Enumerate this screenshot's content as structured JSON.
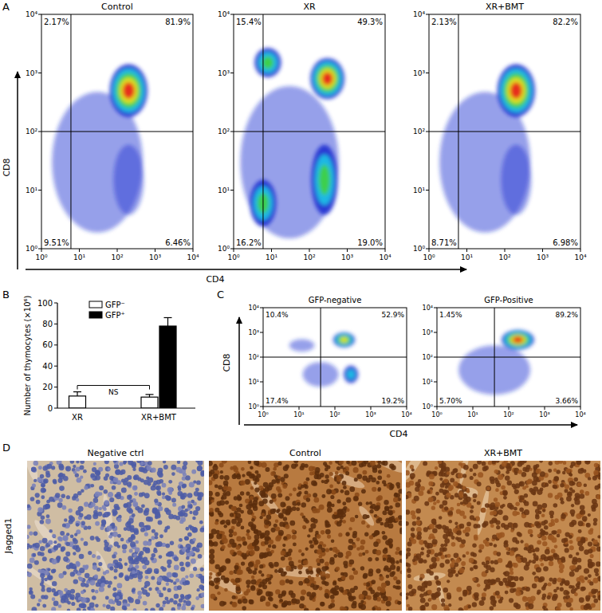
{
  "panel_labels": [
    "A",
    "B",
    "C",
    "D"
  ],
  "chart_data": [
    {
      "type": "flow",
      "xlabel": "CD4",
      "ylabel": "CD8",
      "log": true,
      "xlim": [
        1,
        10000
      ],
      "ylim": [
        1,
        10000
      ],
      "xticks": [
        {
          "value": 1,
          "label": "10⁰"
        },
        {
          "value": 10,
          "label": "10¹"
        },
        {
          "value": 100,
          "label": "10²"
        },
        {
          "value": 1000,
          "label": "10³"
        },
        {
          "value": 10000,
          "label": "10⁴"
        }
      ],
      "yticks": [
        {
          "value": 1,
          "label": "10⁰"
        },
        {
          "value": 10,
          "label": "10¹"
        },
        {
          "value": 100,
          "label": "10²"
        },
        {
          "value": 1000,
          "label": "10³"
        },
        {
          "value": 10000,
          "label": "10⁴"
        }
      ],
      "plots": [
        {
          "title": "Control",
          "gate": {
            "x": 6,
            "y": 100
          },
          "values": [
            2.17,
            81.9,
            9.51,
            6.46
          ],
          "value_labels": [
            "2.17%",
            "81.9%",
            "9.51%",
            "6.46%"
          ],
          "populations": [
            {
              "x": 30,
              "y": 30,
              "sx": 1.2,
              "sy": 1.2,
              "level": 1
            },
            {
              "x": 200,
              "y": 15,
              "sx": 0.4,
              "sy": 0.6,
              "level": 1
            },
            {
              "x": 200,
              "y": 500,
              "sx": 0.5,
              "sy": 0.45,
              "level": 5
            }
          ]
        },
        {
          "title": "XR",
          "gate": {
            "x": 6,
            "y": 100
          },
          "values": [
            15.4,
            49.3,
            16.2,
            19.0
          ],
          "value_labels": [
            "15.4%",
            "49.3%",
            "16.2%",
            "19.0%"
          ],
          "populations": [
            {
              "x": 30,
              "y": 30,
              "sx": 1.3,
              "sy": 1.3,
              "level": 1
            },
            {
              "x": 8,
              "y": 1500,
              "sx": 0.35,
              "sy": 0.25,
              "level": 3
            },
            {
              "x": 6,
              "y": 6,
              "sx": 0.35,
              "sy": 0.4,
              "level": 3
            },
            {
              "x": 250,
              "y": 15,
              "sx": 0.35,
              "sy": 0.6,
              "level": 3
            },
            {
              "x": 300,
              "y": 800,
              "sx": 0.45,
              "sy": 0.35,
              "level": 5
            }
          ]
        },
        {
          "title": "XR+BMT",
          "gate": {
            "x": 6,
            "y": 100
          },
          "values": [
            2.13,
            82.2,
            8.71,
            6.98
          ],
          "value_labels": [
            "2.13%",
            "82.2%",
            "8.71%",
            "6.98%"
          ],
          "populations": [
            {
              "x": 30,
              "y": 30,
              "sx": 1.2,
              "sy": 1.2,
              "level": 1
            },
            {
              "x": 200,
              "y": 15,
              "sx": 0.4,
              "sy": 0.6,
              "level": 1
            },
            {
              "x": 200,
              "y": 500,
              "sx": 0.5,
              "sy": 0.45,
              "level": 5
            }
          ]
        }
      ]
    },
    {
      "type": "bar",
      "ylabel": "Number of thymocytes (×10⁶)",
      "categories": [
        "XR",
        "XR+BMT"
      ],
      "series": [
        {
          "name": "GFP⁻",
          "color": "#ffffff",
          "values": [
            11.5,
            10.5
          ],
          "errors": [
            4,
            2.5
          ]
        },
        {
          "name": "GFP⁺",
          "color": "#000000",
          "values": [
            null,
            78
          ],
          "errors": [
            null,
            8
          ]
        }
      ],
      "ylim": [
        0,
        100
      ],
      "yticks": [
        0,
        20,
        40,
        60,
        80,
        100
      ],
      "annotations": [
        "NS"
      ],
      "legend": "top-left"
    },
    {
      "type": "flow",
      "xlabel": "CD4",
      "ylabel": "CD8",
      "log": true,
      "xlim": [
        1,
        10000
      ],
      "ylim": [
        1,
        10000
      ],
      "xticks": [
        {
          "value": 1,
          "label": "10⁰"
        },
        {
          "value": 10,
          "label": "10¹"
        },
        {
          "value": 100,
          "label": "10²"
        },
        {
          "value": 1000,
          "label": "10³"
        },
        {
          "value": 10000,
          "label": "10⁴"
        }
      ],
      "yticks": [
        {
          "value": 1,
          "label": "10⁰"
        },
        {
          "value": 10,
          "label": "10¹"
        },
        {
          "value": 100,
          "label": "10²"
        },
        {
          "value": 1000,
          "label": "10³"
        },
        {
          "value": 10000,
          "label": "10⁴"
        }
      ],
      "plots": [
        {
          "title": "GFP-negative",
          "gate": {
            "x": 40,
            "y": 100
          },
          "values": [
            10.4,
            52.9,
            17.4,
            19.2
          ],
          "value_labels": [
            "10.4%",
            "52.9%",
            "17.4%",
            "19.2%"
          ],
          "populations": [
            {
              "x": 40,
              "y": 20,
              "sx": 0.5,
              "sy": 0.5,
              "level": 1
            },
            {
              "x": 12,
              "y": 300,
              "sx": 0.35,
              "sy": 0.25,
              "level": 1
            },
            {
              "x": 280,
              "y": 20,
              "sx": 0.2,
              "sy": 0.35,
              "level": 2
            },
            {
              "x": 180,
              "y": 500,
              "sx": 0.3,
              "sy": 0.3,
              "level": 4
            }
          ]
        },
        {
          "title": "GFP-Positive",
          "gate": {
            "x": 40,
            "y": 100
          },
          "values": [
            1.45,
            89.2,
            5.7,
            3.66
          ],
          "value_labels": [
            "1.45%",
            "89.2%",
            "5.70%",
            "3.66%"
          ],
          "populations": [
            {
              "x": 40,
              "y": 30,
              "sx": 1.0,
              "sy": 1.0,
              "level": 1
            },
            {
              "x": 180,
              "y": 500,
              "sx": 0.45,
              "sy": 0.4,
              "level": 5
            }
          ]
        }
      ]
    }
  ],
  "micrographs": {
    "row_label": "Jagged1",
    "titles": [
      "Negative ctrl",
      "Control",
      "XR+BMT"
    ]
  }
}
